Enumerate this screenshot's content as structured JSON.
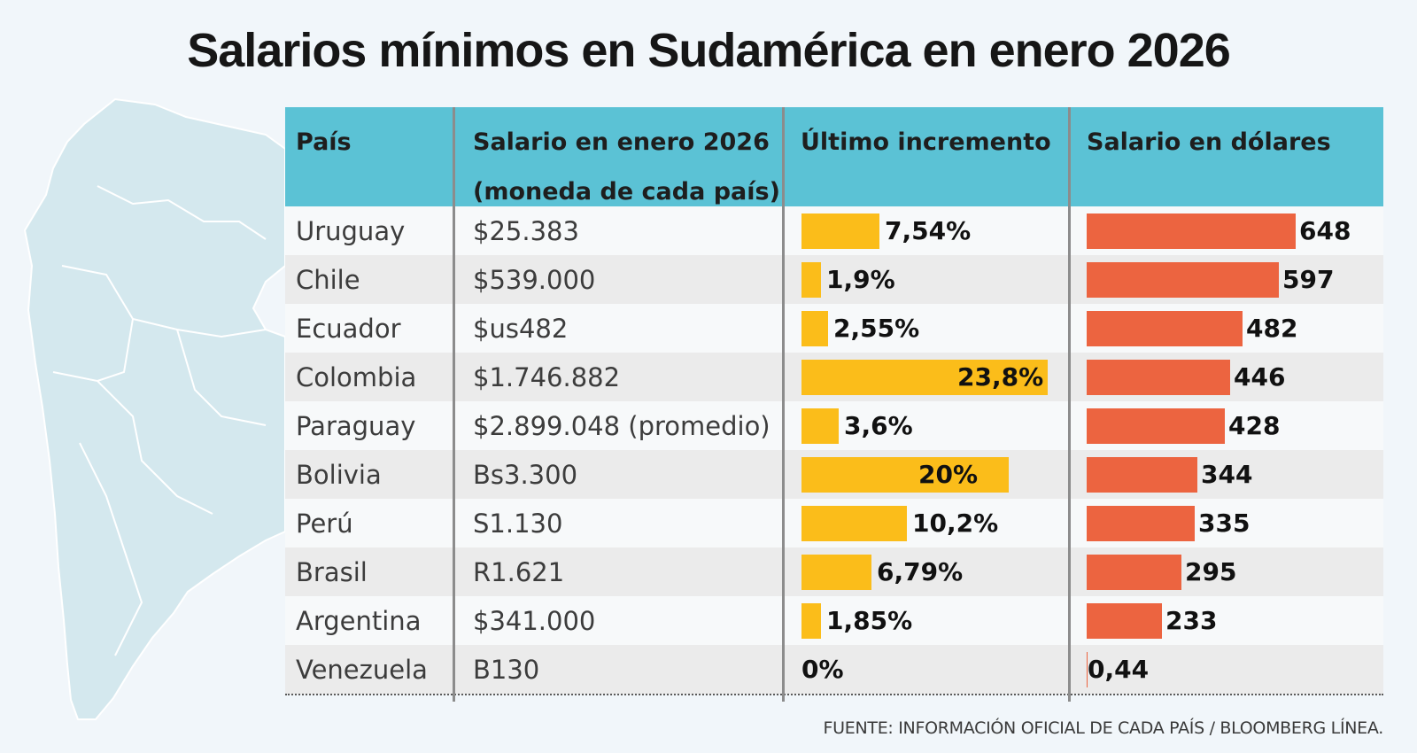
{
  "title": "Salarios mínimos en Sudamérica en enero 2026",
  "source": "FUENTE: INFORMACIÓN OFICIAL DE CADA PAÍS / BLOOMBERG LÍNEA.",
  "colors": {
    "header": "#5bc2d5",
    "increase_bar": "#fbbd1a",
    "usd_bar": "#ec6440",
    "map": "#d4e8ee"
  },
  "chart_data": {
    "type": "table",
    "columns": [
      "País",
      "Salario en enero 2026",
      "(moneda de cada país)",
      "Último incremento",
      "Salario en dólares"
    ],
    "rows": [
      {
        "country": "Uruguay",
        "salary": "$25.383",
        "increase": 7.54,
        "increase_label": "7,54%",
        "usd": 648,
        "usd_label": "648"
      },
      {
        "country": "Chile",
        "salary": "$539.000",
        "increase": 1.9,
        "increase_label": "1,9%",
        "usd": 597,
        "usd_label": "597"
      },
      {
        "country": "Ecuador",
        "salary": "$us482",
        "increase": 2.55,
        "increase_label": "2,55%",
        "usd": 482,
        "usd_label": "482"
      },
      {
        "country": "Colombia",
        "salary": "$1.746.882",
        "increase": 23.8,
        "increase_label": "23,8%",
        "usd": 446,
        "usd_label": "446"
      },
      {
        "country": "Paraguay",
        "salary": "$2.899.048 (promedio)",
        "increase": 3.6,
        "increase_label": "3,6%",
        "usd": 428,
        "usd_label": "428"
      },
      {
        "country": "Bolivia",
        "salary": "Bs3.300",
        "increase": 20,
        "increase_label": "20%",
        "usd": 344,
        "usd_label": "344"
      },
      {
        "country": "Perú",
        "salary": "S1.130",
        "increase": 10.2,
        "increase_label": "10,2%",
        "usd": 335,
        "usd_label": "335"
      },
      {
        "country": "Brasil",
        "salary": "R1.621",
        "increase": 6.79,
        "increase_label": "6,79%",
        "usd": 295,
        "usd_label": "295"
      },
      {
        "country": "Argentina",
        "salary": "$341.000",
        "increase": 1.85,
        "increase_label": "1,85%",
        "usd": 233,
        "usd_label": "233"
      },
      {
        "country": "Venezuela",
        "salary": "B130",
        "increase": 0,
        "increase_label": "0%",
        "usd": 0.44,
        "usd_label": "0,44"
      }
    ]
  }
}
